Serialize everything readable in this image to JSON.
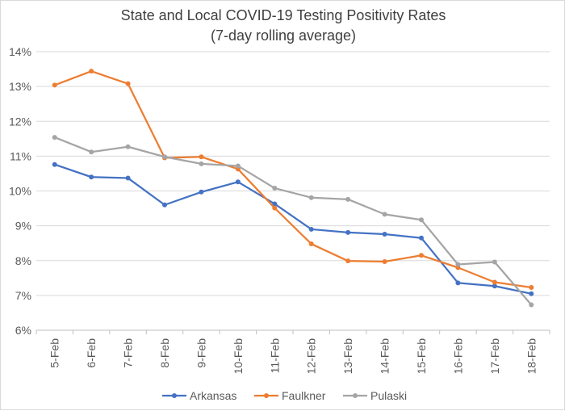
{
  "chart_data": {
    "type": "line",
    "title": "State and Local COVID-19 Testing Positivity Rates",
    "subtitle": "(7-day rolling average)",
    "xlabel": "",
    "ylabel": "",
    "categories": [
      "5-Feb",
      "6-Feb",
      "7-Feb",
      "8-Feb",
      "9-Feb",
      "10-Feb",
      "11-Feb",
      "12-Feb",
      "13-Feb",
      "14-Feb",
      "15-Feb",
      "16-Feb",
      "17-Feb",
      "18-Feb"
    ],
    "ylim": [
      6,
      14
    ],
    "yticks": [
      6,
      7,
      8,
      9,
      10,
      11,
      12,
      13,
      14
    ],
    "ytick_labels": [
      "6%",
      "7%",
      "8%",
      "9%",
      "10%",
      "11%",
      "12%",
      "13%",
      "14%"
    ],
    "grid": true,
    "legend_position": "bottom",
    "series": [
      {
        "name": "Arkansas",
        "color": "#4472c4",
        "values": [
          10.76,
          10.4,
          10.37,
          9.6,
          9.97,
          10.26,
          9.63,
          8.9,
          8.81,
          8.76,
          8.65,
          7.36,
          7.27,
          7.05
        ]
      },
      {
        "name": "Faulkner",
        "color": "#ed7d31",
        "values": [
          13.04,
          13.44,
          13.08,
          10.95,
          10.98,
          10.63,
          9.51,
          8.48,
          7.99,
          7.97,
          8.15,
          7.8,
          7.38,
          7.23
        ]
      },
      {
        "name": "Pulaski",
        "color": "#a5a5a5",
        "values": [
          11.54,
          11.12,
          11.27,
          10.98,
          10.78,
          10.72,
          10.08,
          9.81,
          9.76,
          9.33,
          9.17,
          7.89,
          7.96,
          6.73
        ]
      }
    ]
  }
}
